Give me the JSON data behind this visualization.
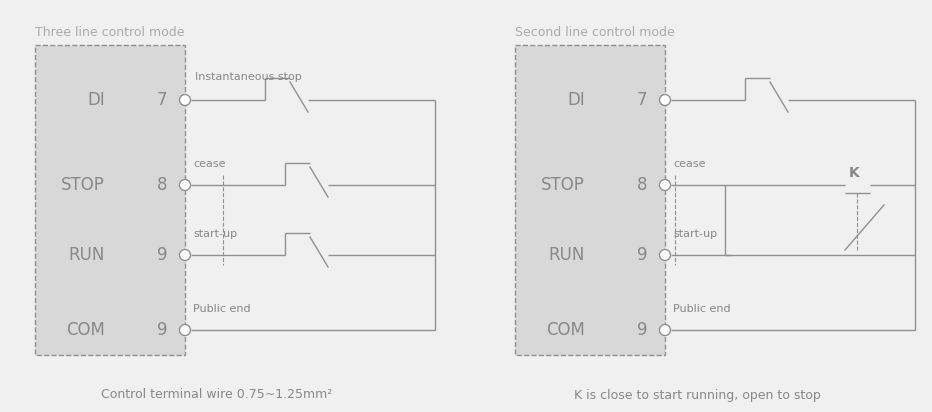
{
  "title_left": "Three line control mode",
  "title_right": "Second line control mode",
  "caption_left": "Control terminal wire 0.75~1.25mm²",
  "caption_right": "K is close to start running, open to stop",
  "bg_color": "#f0f0f0",
  "box_color": "#d8d8d8",
  "line_color": "#909090",
  "text_color": "#888888",
  "title_color": "#aaaaaa"
}
